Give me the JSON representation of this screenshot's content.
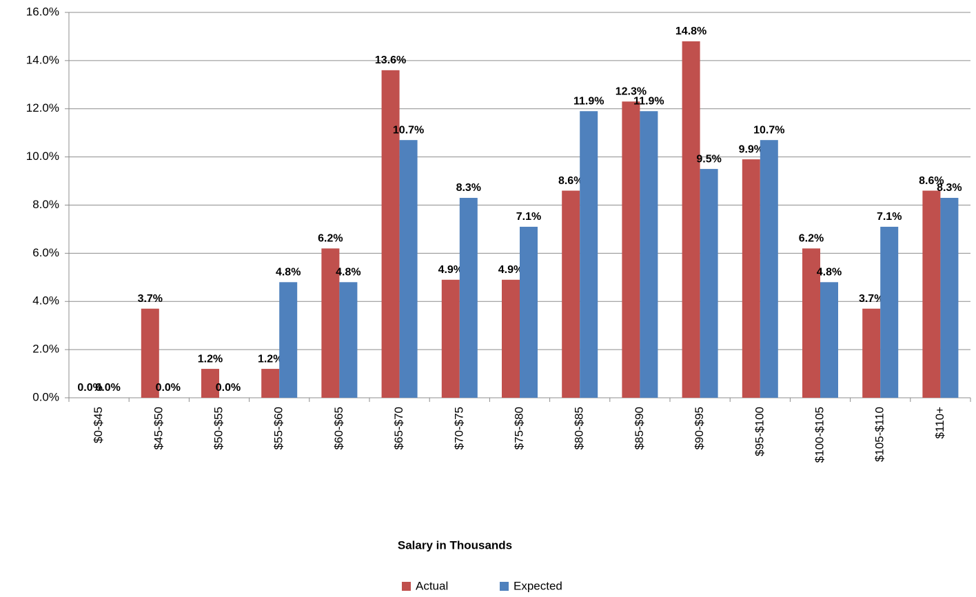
{
  "chart_data": {
    "type": "bar",
    "x_label": "Salary in Thousands",
    "categories": [
      "$0-$45",
      "$45-$50",
      "$50-$55",
      "$55-$60",
      "$60-$65",
      "$65-$70",
      "$70-$75",
      "$75-$80",
      "$80-$85",
      "$85-$90",
      "$90-$95",
      "$95-$100",
      "$100-$105",
      "$105-$110",
      "$110+"
    ],
    "series": [
      {
        "name": "Actual",
        "color": "#c0504d",
        "values": [
          0.0,
          3.7,
          1.2,
          1.2,
          6.2,
          13.6,
          4.9,
          4.9,
          8.6,
          12.3,
          14.8,
          9.9,
          6.2,
          3.7,
          8.6
        ],
        "value_labels": [
          "0.0%",
          "3.7%",
          "1.2%",
          "1.2%",
          "6.2%",
          "13.6%",
          "4.9%",
          "4.9%",
          "8.6%",
          "12.3%",
          "14.8%",
          "9.9%",
          "6.2%",
          "3.7%",
          "8.6%"
        ]
      },
      {
        "name": "Expected",
        "color": "#4f81bd",
        "values": [
          0.0,
          0.0,
          0.0,
          4.8,
          4.8,
          10.7,
          8.3,
          7.1,
          11.9,
          11.9,
          9.5,
          10.7,
          4.8,
          7.1,
          8.3
        ],
        "value_labels": [
          "0.0%",
          "0.0%",
          "0.0%",
          "4.8%",
          "4.8%",
          "10.7%",
          "8.3%",
          "7.1%",
          "11.9%",
          "11.9%",
          "9.5%",
          "10.7%",
          "4.8%",
          "7.1%",
          "8.3%"
        ]
      }
    ],
    "ylim": [
      0,
      16
    ],
    "yticks": [
      {
        "value": 0,
        "label": "0.0%"
      },
      {
        "value": 2,
        "label": "2.0%"
      },
      {
        "value": 4,
        "label": "4.0%"
      },
      {
        "value": 6,
        "label": "6.0%"
      },
      {
        "value": 8,
        "label": "8.0%"
      },
      {
        "value": 10,
        "label": "10.0%"
      },
      {
        "value": 12,
        "label": "12.0%"
      },
      {
        "value": 14,
        "label": "14.0%"
      },
      {
        "value": 16,
        "label": "16.0%"
      }
    ],
    "grid": true,
    "legend": "bottom"
  }
}
